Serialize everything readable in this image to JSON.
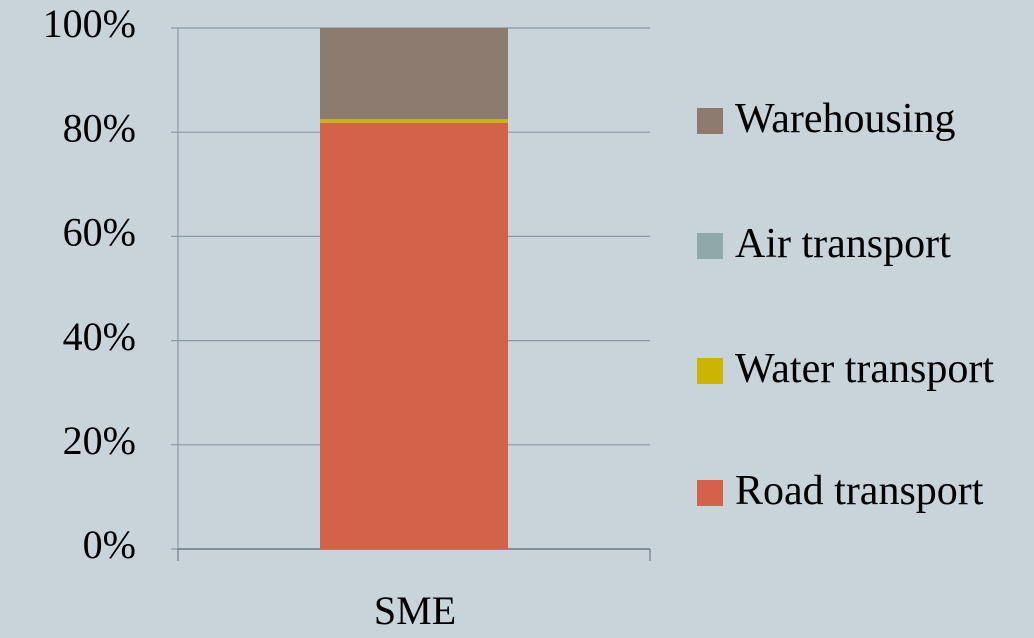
{
  "chart_data": {
    "type": "stacked_bar",
    "categories": [
      "SME"
    ],
    "series": [
      {
        "name": "Road transport",
        "color": "#d2634a",
        "values": [
          81.8
        ]
      },
      {
        "name": "Water transport",
        "color": "#ccb400",
        "values": [
          0.6
        ]
      },
      {
        "name": "Air transport",
        "color": "#8fa9a9",
        "values": [
          0.1
        ]
      },
      {
        "name": "Warehousing",
        "color": "#8c7b6e",
        "values": [
          17.5
        ]
      }
    ],
    "ylim": [
      0,
      100
    ],
    "yticks": [
      {
        "value": 0,
        "label": "0%"
      },
      {
        "value": 20,
        "label": "20%"
      },
      {
        "value": 40,
        "label": "40%"
      },
      {
        "value": 60,
        "label": "60%"
      },
      {
        "value": 80,
        "label": "80%"
      },
      {
        "value": 100,
        "label": "100%"
      }
    ],
    "grid": true
  }
}
